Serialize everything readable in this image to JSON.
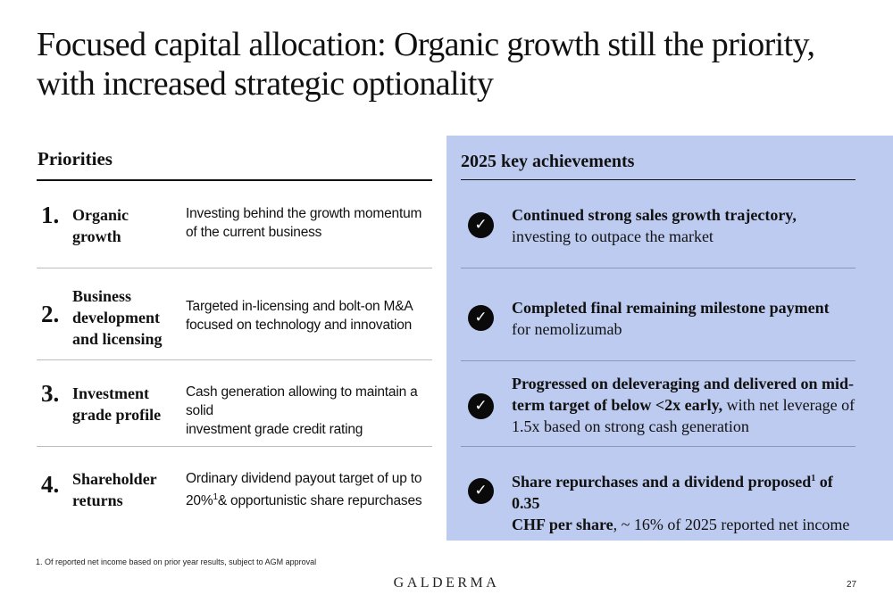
{
  "title": {
    "line1": "Focused capital allocation: Organic growth still the priority,",
    "line2": "with increased strategic optionality"
  },
  "priorities": {
    "heading": "Priorities",
    "items": [
      {
        "number": "1.",
        "name_lines": [
          "Organic",
          "growth"
        ],
        "desc_lines": [
          "Investing behind the growth momentum",
          "of the current business"
        ]
      },
      {
        "number": "2.",
        "name_lines": [
          "Business",
          "development",
          "and licensing"
        ],
        "desc_lines": [
          "Targeted in-licensing and bolt-on M&A",
          "focused on technology and innovation"
        ]
      },
      {
        "number": "3.",
        "name_lines": [
          "Investment",
          "grade profile"
        ],
        "desc_lines": [
          "Cash generation allowing to maintain a solid",
          "investment grade credit rating"
        ]
      },
      {
        "number": "4.",
        "name_lines": [
          "Shareholder",
          "returns"
        ],
        "desc_lines": [
          "Ordinary dividend payout target of up to"
        ],
        "desc_line2_pre": "20%",
        "desc_line2_sup": "1",
        "desc_line2_post": "& opportunistic share repurchases"
      }
    ]
  },
  "achievements": {
    "heading": "2025 key achievements",
    "check_icon": "✓",
    "items": [
      {
        "bold": "Continued strong sales growth trajectory,",
        "normal": "investing to outpace the market"
      },
      {
        "bold": "Completed final remaining milestone payment",
        "normal": "for nemolizumab"
      },
      {
        "bold_line1": "Progressed on deleveraging and delivered on mid-",
        "bold_line2": "term target of below <2x early,",
        "normal_line2": " with net leverage of",
        "normal_line3": "1.5x based on strong cash generation"
      },
      {
        "bold_line1_pre": "Share repurchases and a dividend proposed",
        "sup": "1",
        "bold_line1_post": " of 0.35",
        "bold_line2": "CHF per share",
        "normal_line2": ", ~ 16% of 2025 reported net income"
      }
    ]
  },
  "footnote": "1. Of reported net income based on prior year results, subject to AGM approval",
  "logo": "GALDERMA",
  "page_number": "27",
  "colors": {
    "panel_bg": "#bdcbf0",
    "check_bg": "#0a0a0a"
  }
}
